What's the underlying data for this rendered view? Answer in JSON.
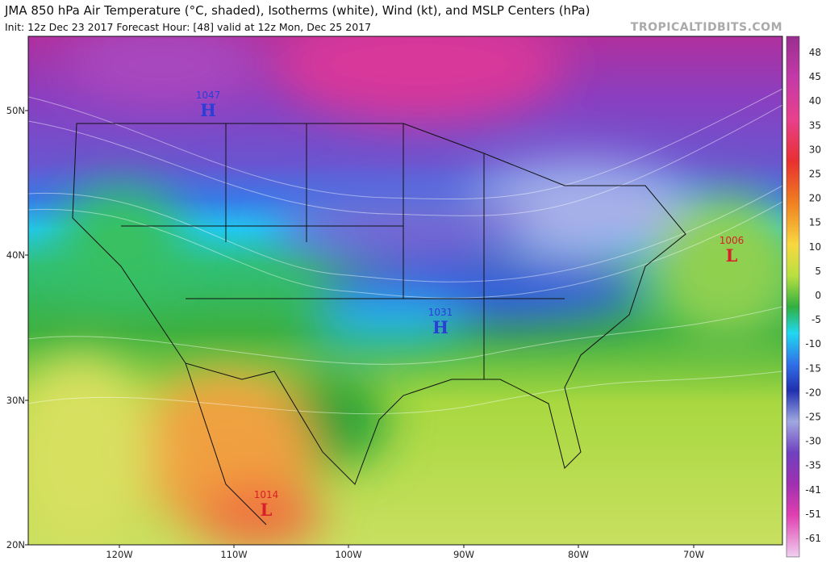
{
  "header": {
    "title": "JMA 850 hPa Air Temperature (°C, shaded), Isotherms (white), Wind (kt), and MSLP Centers (hPa)",
    "subtitle": "Init: 12z Dec 23 2017   Forecast Hour: [48]   valid at 12z Mon, Dec 25 2017",
    "brand": "TROPICALTIDBITS.COM"
  },
  "map": {
    "lat_labels": [
      "50N",
      "40N",
      "30N",
      "20N"
    ],
    "lon_labels": [
      "120W",
      "110W",
      "100W",
      "90W",
      "80W",
      "70W"
    ],
    "centers": [
      {
        "value": "1047",
        "letter": "H"
      },
      {
        "value": "1031",
        "letter": "H"
      },
      {
        "value": "1006",
        "letter": "L"
      },
      {
        "value": "1014",
        "letter": "L"
      }
    ]
  },
  "colorbar": {
    "labels": [
      "48",
      "45",
      "40",
      "35",
      "30",
      "25",
      "20",
      "15",
      "10",
      "5",
      "0",
      "-5",
      "-10",
      "-15",
      "-20",
      "-25",
      "-30",
      "-35",
      "-41",
      "-51",
      "-61"
    ]
  }
}
